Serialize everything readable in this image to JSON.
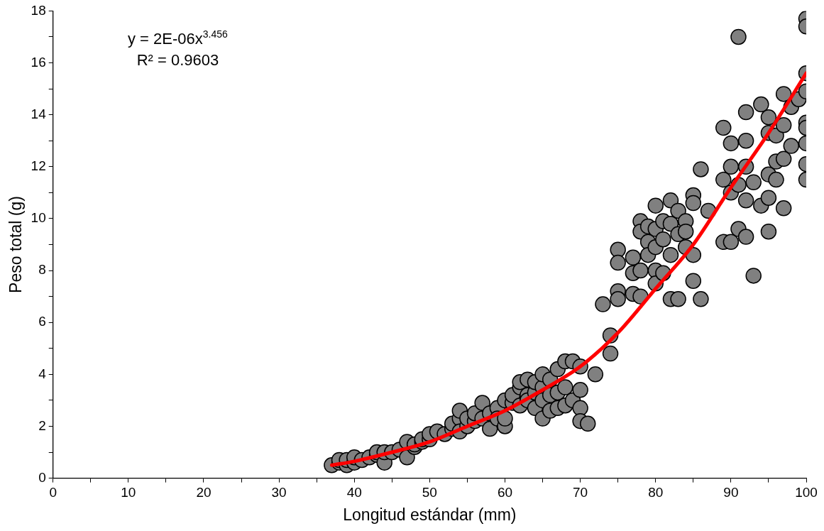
{
  "chart_data": {
    "type": "scatter",
    "xlabel": "Longitud estándar (mm)",
    "ylabel": "Peso total (g)",
    "annotations": [
      "y = 2E-06x$^{3.456}$",
      "R² = 0.9603"
    ],
    "xlim": [
      0,
      100
    ],
    "ylim": [
      0,
      18
    ],
    "xticks": [
      0,
      {
        "value": 5,
        "label": null
      },
      10,
      {
        "value": 15,
        "label": null
      },
      20,
      {
        "value": 25,
        "label": null
      },
      30,
      {
        "value": 35,
        "label": null
      },
      40,
      {
        "value": 45,
        "label": null
      },
      50,
      {
        "value": 55,
        "label": null
      },
      60,
      {
        "value": 65,
        "label": null
      },
      70,
      {
        "value": 75,
        "label": null
      },
      80,
      {
        "value": 85,
        "label": null
      },
      90,
      {
        "value": 95,
        "label": null
      },
      100
    ],
    "yticks": [
      0,
      {
        "value": 1,
        "label": null
      },
      2,
      {
        "value": 3,
        "label": null
      },
      4,
      {
        "value": 5,
        "label": null
      },
      6,
      {
        "value": 7,
        "label": null
      },
      8,
      {
        "value": 9,
        "label": null
      },
      10,
      {
        "value": 11,
        "label": null
      },
      12,
      {
        "value": 13,
        "label": null
      },
      14,
      {
        "value": 15,
        "label": null
      },
      16,
      {
        "value": 17,
        "label": null
      },
      18
    ],
    "grid": false,
    "series": [
      {
        "marker": "circle",
        "color": "#808080",
        "x": [
          37,
          38,
          38,
          39,
          39,
          40,
          40,
          41,
          42,
          43,
          43,
          44,
          44,
          45,
          46,
          47,
          47,
          48,
          48,
          49,
          49,
          50,
          50,
          51,
          52,
          53,
          53,
          54,
          54,
          54,
          55,
          55,
          56,
          56,
          57,
          57,
          58,
          58,
          59,
          59,
          60,
          60,
          60,
          61,
          61,
          62,
          62,
          62,
          63,
          63,
          63,
          64,
          64,
          64,
          65,
          65,
          65,
          65,
          66,
          66,
          66,
          67,
          67,
          67,
          68,
          68,
          68,
          69,
          69,
          70,
          70,
          70,
          70,
          71,
          72,
          73,
          74,
          74,
          75,
          75,
          75,
          75,
          77,
          77,
          77,
          78,
          78,
          78,
          78,
          79,
          79,
          79,
          80,
          80,
          80,
          80,
          80,
          81,
          81,
          81,
          82,
          82,
          82,
          82,
          83,
          83,
          83,
          84,
          84,
          84,
          85,
          85,
          85,
          85,
          86,
          86,
          87,
          89,
          89,
          89,
          90,
          90,
          90,
          90,
          91,
          91,
          91,
          92,
          92,
          92,
          92,
          92,
          93,
          93,
          94,
          94,
          95,
          95,
          95,
          95,
          95,
          96,
          96,
          96,
          97,
          97,
          97,
          97,
          98,
          98,
          99,
          100,
          100,
          100,
          100,
          100,
          100,
          100,
          100,
          100
        ],
        "values": [
          0.5,
          0.6,
          0.7,
          0.5,
          0.7,
          0.6,
          0.8,
          0.7,
          0.8,
          0.9,
          1.0,
          0.6,
          1.0,
          1.0,
          1.1,
          0.8,
          1.4,
          1.2,
          1.3,
          1.4,
          1.5,
          1.5,
          1.7,
          1.8,
          1.7,
          1.9,
          2.1,
          2.3,
          2.6,
          1.8,
          2.0,
          2.3,
          2.2,
          2.5,
          2.9,
          2.3,
          1.9,
          2.5,
          2.7,
          2.3,
          2.0,
          2.3,
          3.0,
          2.9,
          3.2,
          3.5,
          3.7,
          2.8,
          3.2,
          3.8,
          3.0,
          3.3,
          3.7,
          2.7,
          3.5,
          4.0,
          3.0,
          2.3,
          3.8,
          3.2,
          2.6,
          4.2,
          3.3,
          2.7,
          4.5,
          3.5,
          2.8,
          4.5,
          3.0,
          4.3,
          3.4,
          2.7,
          2.2,
          2.1,
          4.0,
          6.7,
          5.5,
          4.8,
          8.8,
          8.3,
          7.2,
          6.9,
          8.5,
          7.9,
          7.1,
          9.9,
          9.5,
          8.0,
          7.0,
          9.7,
          9.1,
          8.6,
          10.5,
          9.6,
          8.9,
          8.0,
          7.5,
          9.9,
          9.2,
          7.9,
          10.7,
          9.8,
          8.6,
          6.9,
          10.3,
          9.4,
          6.9,
          9.9,
          8.9,
          9.5,
          10.9,
          10.6,
          8.6,
          7.6,
          11.9,
          6.9,
          10.3,
          13.5,
          11.5,
          9.1,
          12.9,
          12.0,
          11.0,
          9.1,
          17.0,
          11.3,
          9.6,
          14.1,
          13.0,
          12.0,
          10.7,
          9.3,
          11.4,
          7.8,
          14.4,
          10.5,
          13.9,
          13.3,
          11.7,
          10.8,
          9.5,
          13.2,
          12.2,
          11.5,
          14.8,
          13.6,
          12.3,
          10.4,
          14.3,
          12.8,
          14.6,
          17.7,
          17.4,
          15.6,
          14.9,
          13.7,
          13.5,
          12.9,
          12.1,
          11.5
        ]
      },
      {
        "type": "line",
        "color": "#ff0000",
        "x": [
          37,
          40,
          45,
          50,
          55,
          60,
          65,
          70,
          75,
          80,
          85,
          90,
          95,
          100
        ],
        "values": [
          0.5,
          0.65,
          1.0,
          1.4,
          2.0,
          2.6,
          3.4,
          4.3,
          5.6,
          7.3,
          9.0,
          11.2,
          13.3,
          15.6
        ]
      }
    ]
  }
}
